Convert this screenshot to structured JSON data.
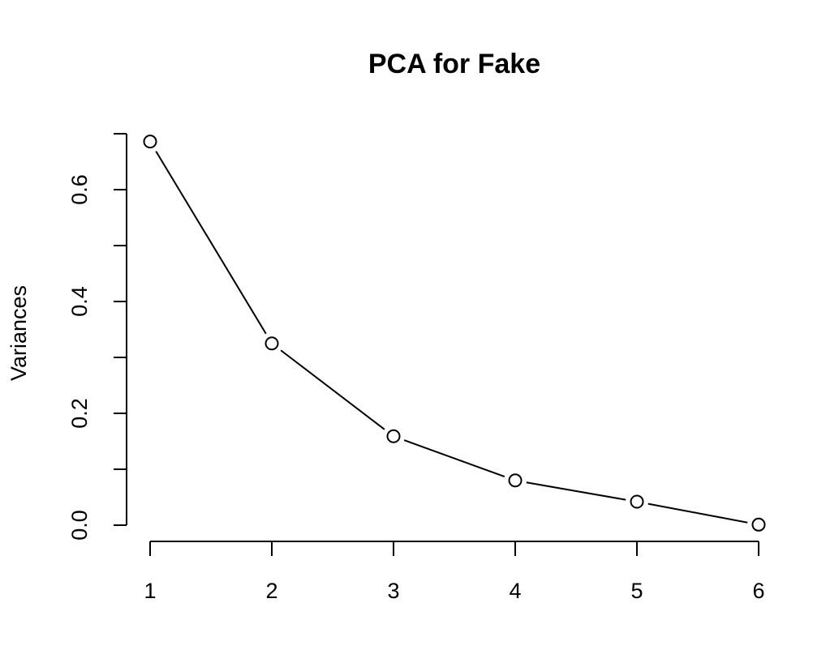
{
  "chart_data": {
    "type": "line",
    "title": "PCA for Fake",
    "xlabel": "",
    "ylabel": "Variances",
    "x": [
      1,
      2,
      3,
      4,
      5,
      6
    ],
    "values": [
      0.686,
      0.325,
      0.159,
      0.08,
      0.042,
      0.001
    ],
    "x_ticks": [
      "1",
      "2",
      "3",
      "4",
      "5",
      "6"
    ],
    "y_ticks": [
      0.0,
      0.1,
      0.2,
      0.3,
      0.4,
      0.5,
      0.6,
      0.7
    ],
    "y_tick_labels": {
      "0": "0.0",
      "2": "0.2",
      "4": "0.4",
      "6": "0.6"
    },
    "xlim": [
      1,
      6
    ],
    "ylim": [
      0,
      0.7
    ],
    "grid": false,
    "legend": "none",
    "marker": "open-circle"
  }
}
